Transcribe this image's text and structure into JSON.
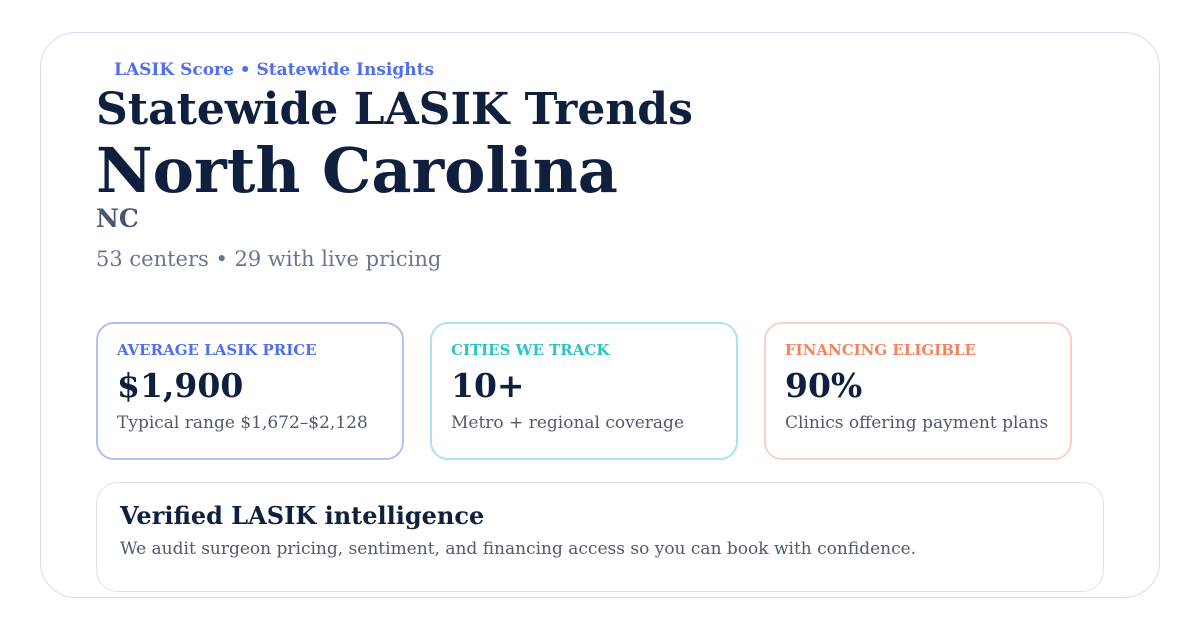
{
  "header": {
    "eyebrow": "LASIK Score • Statewide Insights",
    "title": "Statewide LASIK Trends",
    "state": "North Carolina",
    "abbreviation": "NC",
    "subtitle": "53 centers • 29 with live pricing"
  },
  "stats": [
    {
      "label": "AVERAGE LASIK PRICE",
      "value": "$1,900",
      "note": "Typical range $1,672–$2,128"
    },
    {
      "label": "CITIES WE TRACK",
      "value": "10+",
      "note": "Metro + regional coverage"
    },
    {
      "label": "FINANCING ELIGIBLE",
      "value": "90%",
      "note": "Clinics offering payment plans"
    }
  ],
  "footer": {
    "heading": "Verified LASIK intelligence",
    "text": "We audit surgeon pricing, sentiment, and financing access so you can book with confidence."
  }
}
